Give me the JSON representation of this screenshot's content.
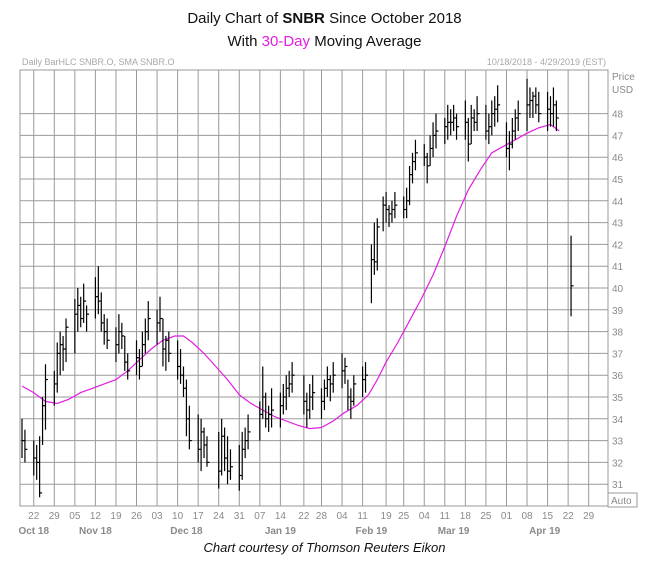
{
  "title": {
    "prefix": "Daily Chart of",
    "ticker": "SNBR",
    "suffix": "Since October 2018",
    "line2_prefix": "With",
    "line2_highlight": "30-Day",
    "line2_suffix": "Moving Average"
  },
  "header_left": "Daily BarHLC SNBR.O, SMA SNBR.O",
  "header_right": "10/18/2018 - 4/29/2019 (EST)",
  "y_axis_title_1": "Price",
  "y_axis_title_2": "USD",
  "auto_label": "Auto",
  "caption": "Chart courtesy of Thomson Reuters Eikon",
  "colors": {
    "sma": "#e31ee3",
    "bars": "#000000",
    "grid": "#9a9a9a",
    "text": "#8a8a8a"
  },
  "chart_data": {
    "type": "ohlc_bar",
    "ylim": [
      30,
      50
    ],
    "y_ticks": [
      31,
      32,
      33,
      34,
      35,
      36,
      37,
      38,
      39,
      40,
      41,
      42,
      43,
      44,
      45,
      46,
      47,
      48
    ],
    "x_day_range": [
      0,
      188
    ],
    "x_ticks": [
      {
        "label": "22",
        "day": 4
      },
      {
        "label": "29",
        "day": 11
      },
      {
        "label": "05",
        "day": 18
      },
      {
        "label": "12",
        "day": 25
      },
      {
        "label": "19",
        "day": 32
      },
      {
        "label": "26",
        "day": 39
      },
      {
        "label": "03",
        "day": 46
      },
      {
        "label": "10",
        "day": 53
      },
      {
        "label": "17",
        "day": 60
      },
      {
        "label": "24",
        "day": 67
      },
      {
        "label": "31",
        "day": 74
      },
      {
        "label": "07",
        "day": 81
      },
      {
        "label": "14",
        "day": 88
      },
      {
        "label": "22",
        "day": 96
      },
      {
        "label": "28",
        "day": 102
      },
      {
        "label": "04",
        "day": 109
      },
      {
        "label": "11",
        "day": 116
      },
      {
        "label": "19",
        "day": 124
      },
      {
        "label": "25",
        "day": 130
      },
      {
        "label": "04",
        "day": 137
      },
      {
        "label": "11",
        "day": 144
      },
      {
        "label": "18",
        "day": 151
      },
      {
        "label": "25",
        "day": 158
      },
      {
        "label": "01",
        "day": 165
      },
      {
        "label": "08",
        "day": 172
      },
      {
        "label": "15",
        "day": 179
      },
      {
        "label": "22",
        "day": 186
      },
      {
        "label": "29",
        "day": 193
      }
    ],
    "months": [
      {
        "label": "Oct 18",
        "day": 4
      },
      {
        "label": "Nov 18",
        "day": 25
      },
      {
        "label": "Dec 18",
        "day": 56
      },
      {
        "label": "Jan 19",
        "day": 88
      },
      {
        "label": "Feb 19",
        "day": 119
      },
      {
        "label": "Mar 19",
        "day": 147
      },
      {
        "label": "Apr 19",
        "day": 178
      }
    ],
    "bars": [
      {
        "d": 0,
        "h": 34.0,
        "l": 32.2,
        "c": 33.0
      },
      {
        "d": 1,
        "h": 33.5,
        "l": 32.0,
        "c": 32.6
      },
      {
        "d": 4,
        "h": 33.0,
        "l": 31.4,
        "c": 32.2
      },
      {
        "d": 5,
        "h": 32.8,
        "l": 31.2,
        "c": 32.0
      },
      {
        "d": 6,
        "h": 33.2,
        "l": 30.4,
        "c": 30.6
      },
      {
        "d": 7,
        "h": 35.0,
        "l": 32.8,
        "c": 34.6
      },
      {
        "d": 8,
        "h": 36.5,
        "l": 33.5,
        "c": 35.8
      },
      {
        "d": 11,
        "h": 36.2,
        "l": 34.6,
        "c": 35.6
      },
      {
        "d": 12,
        "h": 37.5,
        "l": 35.2,
        "c": 37.0
      },
      {
        "d": 13,
        "h": 38.0,
        "l": 36.0,
        "c": 37.4
      },
      {
        "d": 14,
        "h": 37.8,
        "l": 36.2,
        "c": 37.2
      },
      {
        "d": 15,
        "h": 38.6,
        "l": 36.6,
        "c": 38.2
      },
      {
        "d": 18,
        "h": 39.5,
        "l": 37.0,
        "c": 38.8
      },
      {
        "d": 19,
        "h": 40.0,
        "l": 38.0,
        "c": 39.2
      },
      {
        "d": 20,
        "h": 39.6,
        "l": 38.2,
        "c": 38.6
      },
      {
        "d": 21,
        "h": 40.2,
        "l": 38.4,
        "c": 39.4
      },
      {
        "d": 22,
        "h": 39.2,
        "l": 38.0,
        "c": 38.8
      },
      {
        "d": 25,
        "h": 40.5,
        "l": 38.6,
        "c": 39.6
      },
      {
        "d": 26,
        "h": 41.0,
        "l": 38.8,
        "c": 39.4
      },
      {
        "d": 27,
        "h": 39.8,
        "l": 38.0,
        "c": 38.4
      },
      {
        "d": 28,
        "h": 38.8,
        "l": 37.4,
        "c": 38.0
      },
      {
        "d": 29,
        "h": 38.6,
        "l": 37.2,
        "c": 37.6
      },
      {
        "d": 32,
        "h": 38.2,
        "l": 36.6,
        "c": 37.4
      },
      {
        "d": 33,
        "h": 38.8,
        "l": 37.0,
        "c": 38.0
      },
      {
        "d": 34,
        "h": 38.4,
        "l": 37.2,
        "c": 37.8
      },
      {
        "d": 35,
        "h": 37.8,
        "l": 36.2,
        "c": 36.6
      },
      {
        "d": 36,
        "h": 37.0,
        "l": 35.8,
        "c": 36.2
      },
      {
        "d": 39,
        "h": 37.6,
        "l": 36.0,
        "c": 36.8
      },
      {
        "d": 40,
        "h": 37.2,
        "l": 35.8,
        "c": 36.4
      },
      {
        "d": 41,
        "h": 38.0,
        "l": 36.4,
        "c": 37.4
      },
      {
        "d": 42,
        "h": 38.6,
        "l": 37.0,
        "c": 38.0
      },
      {
        "d": 43,
        "h": 39.4,
        "l": 37.6,
        "c": 38.6
      },
      {
        "d": 46,
        "h": 39.0,
        "l": 37.4,
        "c": 38.4
      },
      {
        "d": 47,
        "h": 39.6,
        "l": 38.0,
        "c": 38.6
      },
      {
        "d": 48,
        "h": 38.6,
        "l": 36.4,
        "c": 37.2
      },
      {
        "d": 49,
        "h": 37.8,
        "l": 36.2,
        "c": 37.6
      },
      {
        "d": 50,
        "h": 38.0,
        "l": 36.6,
        "c": 37.0
      },
      {
        "d": 53,
        "h": 37.6,
        "l": 35.8,
        "c": 36.4
      },
      {
        "d": 54,
        "h": 37.2,
        "l": 35.6,
        "c": 36.0
      },
      {
        "d": 55,
        "h": 36.4,
        "l": 35.0,
        "c": 35.4
      },
      {
        "d": 56,
        "h": 35.8,
        "l": 33.2,
        "c": 34.0
      },
      {
        "d": 57,
        "h": 34.6,
        "l": 32.6,
        "c": 33.0
      },
      {
        "d": 60,
        "h": 34.2,
        "l": 32.0,
        "c": 32.6
      },
      {
        "d": 61,
        "h": 34.0,
        "l": 31.6,
        "c": 33.4
      },
      {
        "d": 62,
        "h": 33.6,
        "l": 32.2,
        "c": 32.8
      },
      {
        "d": 63,
        "h": 33.2,
        "l": 31.8,
        "c": 32.0
      },
      {
        "d": 67,
        "h": 33.4,
        "l": 30.8,
        "c": 31.6
      },
      {
        "d": 68,
        "h": 34.0,
        "l": 31.4,
        "c": 33.2
      },
      {
        "d": 69,
        "h": 33.6,
        "l": 31.6,
        "c": 32.2
      },
      {
        "d": 70,
        "h": 33.2,
        "l": 31.0,
        "c": 31.6
      },
      {
        "d": 71,
        "h": 32.6,
        "l": 31.2,
        "c": 31.8
      },
      {
        "d": 74,
        "h": 32.8,
        "l": 30.7,
        "c": 31.4
      },
      {
        "d": 75,
        "h": 33.4,
        "l": 31.2,
        "c": 32.6
      },
      {
        "d": 76,
        "h": 33.6,
        "l": 32.2,
        "c": 33.0
      },
      {
        "d": 77,
        "h": 34.2,
        "l": 32.6,
        "c": 33.4
      },
      {
        "d": 81,
        "h": 34.8,
        "l": 33.0,
        "c": 34.2
      },
      {
        "d": 82,
        "h": 36.4,
        "l": 34.0,
        "c": 35.0
      },
      {
        "d": 83,
        "h": 35.2,
        "l": 33.6,
        "c": 34.0
      },
      {
        "d": 84,
        "h": 34.6,
        "l": 33.4,
        "c": 34.2
      },
      {
        "d": 85,
        "h": 35.4,
        "l": 33.6,
        "c": 34.4
      },
      {
        "d": 88,
        "h": 35.2,
        "l": 33.6,
        "c": 34.6
      },
      {
        "d": 89,
        "h": 35.6,
        "l": 34.2,
        "c": 35.0
      },
      {
        "d": 90,
        "h": 36.0,
        "l": 34.4,
        "c": 35.4
      },
      {
        "d": 91,
        "h": 36.2,
        "l": 35.0,
        "c": 35.6
      },
      {
        "d": 92,
        "h": 36.6,
        "l": 35.2,
        "c": 36.0
      },
      {
        "d": 96,
        "h": 36.0,
        "l": 34.2,
        "c": 34.8
      },
      {
        "d": 97,
        "h": 35.2,
        "l": 33.6,
        "c": 34.4
      },
      {
        "d": 98,
        "h": 35.6,
        "l": 34.0,
        "c": 35.0
      },
      {
        "d": 99,
        "h": 36.0,
        "l": 34.4,
        "c": 35.2
      },
      {
        "d": 102,
        "h": 35.4,
        "l": 34.0,
        "c": 34.8
      },
      {
        "d": 103,
        "h": 35.8,
        "l": 34.4,
        "c": 35.4
      },
      {
        "d": 104,
        "h": 36.4,
        "l": 35.0,
        "c": 35.8
      },
      {
        "d": 105,
        "h": 36.0,
        "l": 34.8,
        "c": 35.6
      },
      {
        "d": 106,
        "h": 36.6,
        "l": 35.2,
        "c": 36.0
      },
      {
        "d": 109,
        "h": 37.0,
        "l": 35.4,
        "c": 36.2
      },
      {
        "d": 110,
        "h": 36.8,
        "l": 35.6,
        "c": 36.4
      },
      {
        "d": 111,
        "h": 35.8,
        "l": 34.4,
        "c": 35.0
      },
      {
        "d": 112,
        "h": 35.4,
        "l": 34.0,
        "c": 34.8
      },
      {
        "d": 113,
        "h": 36.0,
        "l": 34.6,
        "c": 35.6
      },
      {
        "d": 116,
        "h": 36.4,
        "l": 35.0,
        "c": 35.8
      },
      {
        "d": 117,
        "h": 36.6,
        "l": 35.2,
        "c": 36.0
      },
      {
        "d": 119,
        "h": 42.0,
        "l": 39.3,
        "c": 41.3
      },
      {
        "d": 120,
        "h": 43.0,
        "l": 40.6,
        "c": 41.2
      },
      {
        "d": 121,
        "h": 43.2,
        "l": 40.8,
        "c": 42.8
      },
      {
        "d": 123,
        "h": 44.2,
        "l": 42.6,
        "c": 43.8
      },
      {
        "d": 124,
        "h": 44.4,
        "l": 43.0,
        "c": 43.6
      },
      {
        "d": 125,
        "h": 43.8,
        "l": 42.8,
        "c": 43.4
      },
      {
        "d": 126,
        "h": 44.0,
        "l": 43.0,
        "c": 43.6
      },
      {
        "d": 127,
        "h": 44.4,
        "l": 43.2,
        "c": 43.8
      },
      {
        "d": 130,
        "h": 44.2,
        "l": 43.2,
        "c": 43.6
      },
      {
        "d": 131,
        "h": 44.6,
        "l": 43.2,
        "c": 44.0
      },
      {
        "d": 132,
        "h": 45.6,
        "l": 43.8,
        "c": 45.2
      },
      {
        "d": 133,
        "h": 46.2,
        "l": 44.8,
        "c": 45.8
      },
      {
        "d": 134,
        "h": 46.8,
        "l": 45.4,
        "c": 46.2
      },
      {
        "d": 137,
        "h": 46.6,
        "l": 45.6,
        "c": 46.0
      },
      {
        "d": 138,
        "h": 46.2,
        "l": 44.8,
        "c": 45.6
      },
      {
        "d": 139,
        "h": 47.0,
        "l": 45.6,
        "c": 46.4
      },
      {
        "d": 140,
        "h": 47.6,
        "l": 46.0,
        "c": 47.0
      },
      {
        "d": 141,
        "h": 48.0,
        "l": 46.4,
        "c": 47.2
      },
      {
        "d": 144,
        "h": 47.8,
        "l": 46.6,
        "c": 47.4
      },
      {
        "d": 145,
        "h": 48.4,
        "l": 46.8,
        "c": 47.6
      },
      {
        "d": 146,
        "h": 48.2,
        "l": 47.0,
        "c": 47.6
      },
      {
        "d": 147,
        "h": 48.4,
        "l": 47.2,
        "c": 47.8
      },
      {
        "d": 148,
        "h": 48.0,
        "l": 46.8,
        "c": 47.4
      },
      {
        "d": 151,
        "h": 48.6,
        "l": 46.8,
        "c": 47.6
      },
      {
        "d": 152,
        "h": 47.8,
        "l": 45.8,
        "c": 46.6
      },
      {
        "d": 153,
        "h": 48.4,
        "l": 46.6,
        "c": 47.8
      },
      {
        "d": 154,
        "h": 48.2,
        "l": 47.2,
        "c": 47.6
      },
      {
        "d": 155,
        "h": 48.8,
        "l": 47.2,
        "c": 48.0
      },
      {
        "d": 158,
        "h": 48.4,
        "l": 46.8,
        "c": 47.2
      },
      {
        "d": 159,
        "h": 48.0,
        "l": 46.6,
        "c": 47.4
      },
      {
        "d": 160,
        "h": 48.6,
        "l": 47.0,
        "c": 48.0
      },
      {
        "d": 161,
        "h": 48.8,
        "l": 47.4,
        "c": 48.2
      },
      {
        "d": 162,
        "h": 49.3,
        "l": 47.6,
        "c": 48.4
      },
      {
        "d": 165,
        "h": 47.6,
        "l": 46.0,
        "c": 46.4
      },
      {
        "d": 166,
        "h": 47.2,
        "l": 45.4,
        "c": 46.6
      },
      {
        "d": 167,
        "h": 47.8,
        "l": 46.4,
        "c": 47.2
      },
      {
        "d": 168,
        "h": 48.2,
        "l": 46.8,
        "c": 47.8
      },
      {
        "d": 169,
        "h": 48.6,
        "l": 47.2,
        "c": 48.0
      },
      {
        "d": 172,
        "h": 49.6,
        "l": 47.2,
        "c": 48.4
      },
      {
        "d": 173,
        "h": 49.2,
        "l": 47.8,
        "c": 48.6
      },
      {
        "d": 174,
        "h": 49.0,
        "l": 47.8,
        "c": 48.8
      },
      {
        "d": 175,
        "h": 49.2,
        "l": 48.0,
        "c": 48.4
      },
      {
        "d": 176,
        "h": 49.0,
        "l": 47.6,
        "c": 48.0
      },
      {
        "d": 179,
        "h": 49.0,
        "l": 47.2,
        "c": 48.2
      },
      {
        "d": 180,
        "h": 48.8,
        "l": 47.4,
        "c": 48.0
      },
      {
        "d": 181,
        "h": 49.2,
        "l": 47.4,
        "c": 48.4
      },
      {
        "d": 182,
        "h": 48.6,
        "l": 47.2,
        "c": 47.8
      },
      {
        "d": 187,
        "h": 42.4,
        "l": 38.7,
        "c": 40.1
      }
    ],
    "sma_30": [
      {
        "d": 0,
        "v": 35.5
      },
      {
        "d": 4,
        "v": 35.2
      },
      {
        "d": 8,
        "v": 34.8
      },
      {
        "d": 12,
        "v": 34.7
      },
      {
        "d": 16,
        "v": 34.9
      },
      {
        "d": 20,
        "v": 35.2
      },
      {
        "d": 24,
        "v": 35.4
      },
      {
        "d": 28,
        "v": 35.6
      },
      {
        "d": 32,
        "v": 35.8
      },
      {
        "d": 36,
        "v": 36.2
      },
      {
        "d": 40,
        "v": 36.7
      },
      {
        "d": 44,
        "v": 37.2
      },
      {
        "d": 48,
        "v": 37.6
      },
      {
        "d": 52,
        "v": 37.8
      },
      {
        "d": 55,
        "v": 37.8
      },
      {
        "d": 58,
        "v": 37.5
      },
      {
        "d": 62,
        "v": 37.0
      },
      {
        "d": 66,
        "v": 36.4
      },
      {
        "d": 70,
        "v": 35.8
      },
      {
        "d": 74,
        "v": 35.1
      },
      {
        "d": 78,
        "v": 34.7
      },
      {
        "d": 82,
        "v": 34.4
      },
      {
        "d": 86,
        "v": 34.1
      },
      {
        "d": 90,
        "v": 33.9
      },
      {
        "d": 94,
        "v": 33.7
      },
      {
        "d": 98,
        "v": 33.55
      },
      {
        "d": 102,
        "v": 33.6
      },
      {
        "d": 106,
        "v": 33.9
      },
      {
        "d": 110,
        "v": 34.3
      },
      {
        "d": 114,
        "v": 34.6
      },
      {
        "d": 118,
        "v": 35.1
      },
      {
        "d": 121,
        "v": 35.8
      },
      {
        "d": 124,
        "v": 36.6
      },
      {
        "d": 128,
        "v": 37.5
      },
      {
        "d": 132,
        "v": 38.5
      },
      {
        "d": 136,
        "v": 39.5
      },
      {
        "d": 140,
        "v": 40.6
      },
      {
        "d": 144,
        "v": 41.9
      },
      {
        "d": 148,
        "v": 43.3
      },
      {
        "d": 152,
        "v": 44.5
      },
      {
        "d": 156,
        "v": 45.4
      },
      {
        "d": 160,
        "v": 46.2
      },
      {
        "d": 164,
        "v": 46.5
      },
      {
        "d": 168,
        "v": 46.8
      },
      {
        "d": 172,
        "v": 47.1
      },
      {
        "d": 176,
        "v": 47.35
      },
      {
        "d": 180,
        "v": 47.5
      },
      {
        "d": 183,
        "v": 47.2
      }
    ]
  }
}
